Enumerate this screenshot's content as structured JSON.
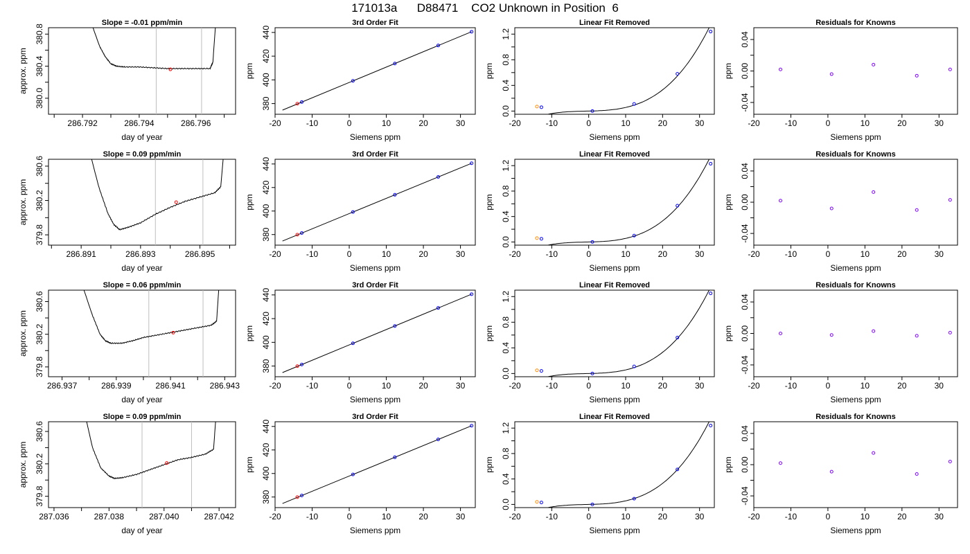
{
  "figure": {
    "title": "171013a      D88471    CO2 Unknown in Position  6"
  },
  "colors": {
    "trace": "#000000",
    "marker_unknown": "#ff0000",
    "marker_known": "#0000ff",
    "marker_ref": "#ff8c00",
    "residual": "#7f00ff",
    "window_lines": "#bebebe"
  },
  "chart_data": [
    {
      "type": "line",
      "row": 1,
      "col": 1,
      "title": "Slope =  -0.01  ppm/min",
      "xlabel": "day of year",
      "ylabel": "approx. ppm",
      "xlim": [
        286.7908,
        286.7974
      ],
      "ylim": [
        379.8,
        380.88
      ],
      "xticks": [
        286.791,
        286.792,
        286.793,
        286.794,
        286.795,
        286.796,
        286.797
      ],
      "xticklabels": [
        "",
        "286.792",
        "",
        "286.794",
        "",
        "286.796",
        ""
      ],
      "yticks": [
        380.0,
        380.2,
        380.4,
        380.6,
        380.8
      ],
      "yticklabels": [
        "380.0",
        "",
        "380.4",
        "",
        "380.8"
      ],
      "vlines": [
        286.7946,
        286.7962
      ],
      "trace": {
        "x": [
          286.7923,
          286.7926,
          286.7928,
          286.793,
          286.7932,
          286.7935,
          286.794,
          286.7945,
          286.795,
          286.7955,
          286.796,
          286.7965,
          286.7966,
          286.7967
        ],
        "y": [
          380.95,
          380.65,
          380.52,
          380.43,
          380.4,
          380.39,
          380.39,
          380.38,
          380.37,
          380.37,
          380.37,
          380.37,
          380.45,
          380.95
        ]
      },
      "marker": {
        "x": 286.7951,
        "y": 380.36
      }
    },
    {
      "type": "scatter",
      "row": 1,
      "col": 2,
      "title": "3rd Order Fit",
      "xlabel": "Siemens ppm",
      "ylabel": "ppm",
      "xlim": [
        -20,
        34
      ],
      "ylim": [
        371,
        444
      ],
      "xticks": [
        -20,
        -10,
        0,
        10,
        20,
        30
      ],
      "xticklabels": [
        "-20",
        "-10",
        "0",
        "10",
        "20",
        "30"
      ],
      "yticks": [
        380,
        400,
        420,
        440
      ],
      "yticklabels": [
        "380",
        "400",
        "420",
        "440"
      ],
      "fit": {
        "x": [
          -18,
          33
        ],
        "y": [
          374.5,
          440.6
        ]
      },
      "points": {
        "x": [
          -12.8,
          1.0,
          12.3,
          24.0,
          33.0
        ],
        "y": [
          381.3,
          399.2,
          413.8,
          429.0,
          440.6
        ]
      },
      "marker": {
        "x": -14.0,
        "y": 379.9
      },
      "knowns_color": "#0000ff",
      "marker_color": "#ff0000"
    },
    {
      "type": "scatter",
      "row": 1,
      "col": 3,
      "title": "Linear Fit Removed",
      "xlabel": "Siemens ppm",
      "ylabel": "ppm",
      "xlim": [
        -20,
        34
      ],
      "ylim": [
        -0.05,
        1.3
      ],
      "xticks": [
        -20,
        -10,
        0,
        10,
        20,
        30
      ],
      "xticklabels": [
        "-20",
        "-10",
        "0",
        "10",
        "20",
        "30"
      ],
      "yticks": [
        0.0,
        0.2,
        0.4,
        0.6,
        0.8,
        1.0,
        1.2
      ],
      "yticklabels": [
        "0.0",
        "",
        "0.4",
        "",
        "0.8",
        "",
        "1.2"
      ],
      "curve": [
        0.0,
        0.00138,
        8.6e-05,
        3.36e-05
      ],
      "points": {
        "x": [
          -12.8,
          1.0,
          12.3,
          24.0,
          33.0
        ],
        "y": [
          0.06,
          0.0,
          0.11,
          0.58,
          1.24
        ]
      },
      "marker": {
        "x": -14.0,
        "y": 0.07
      },
      "knowns_color": "#0000ff",
      "marker_color": "#ff8c00"
    },
    {
      "type": "scatter",
      "row": 1,
      "col": 4,
      "title": "Residuals for Knowns",
      "xlabel": "Siemens ppm",
      "ylabel": "ppm",
      "xlim": [
        -20,
        35
      ],
      "ylim": [
        -0.055,
        0.055
      ],
      "xticks": [
        -20,
        -10,
        0,
        10,
        20,
        30
      ],
      "xticklabels": [
        "-20",
        "-10",
        "0",
        "10",
        "20",
        "30"
      ],
      "yticks": [
        -0.04,
        -0.02,
        0.0,
        0.02,
        0.04
      ],
      "yticklabels": [
        "-0.04",
        "",
        "0.00",
        "",
        "0.04"
      ],
      "points": {
        "x": [
          -12.8,
          1.0,
          12.3,
          24.0,
          33.0
        ],
        "y": [
          0.002,
          -0.004,
          0.008,
          -0.006,
          0.002
        ]
      },
      "knowns_color": "#7f00ff"
    },
    {
      "type": "line",
      "row": 2,
      "col": 1,
      "title": "Slope =  0.09  ppm/min",
      "xlabel": "day of year",
      "ylabel": "approx. ppm",
      "xlim": [
        286.8899,
        286.8962
      ],
      "ylim": [
        379.68,
        380.68
      ],
      "xticks": [
        286.89,
        286.891,
        286.892,
        286.893,
        286.894,
        286.895,
        286.896
      ],
      "xticklabels": [
        "",
        "286.891",
        "",
        "286.893",
        "",
        "286.895",
        ""
      ],
      "yticks": [
        379.8,
        380.0,
        380.2,
        380.4,
        380.6
      ],
      "yticklabels": [
        "379.8",
        "",
        "380.2",
        "",
        "380.6"
      ],
      "vlines": [
        286.8935,
        286.8951
      ],
      "trace": {
        "x": [
          286.8913,
          286.8916,
          286.8919,
          286.8921,
          286.8923,
          286.8926,
          286.893,
          286.8935,
          286.894,
          286.8945,
          286.895,
          286.8955,
          286.8957,
          286.8958
        ],
        "y": [
          380.75,
          380.35,
          380.05,
          379.92,
          379.86,
          379.89,
          379.94,
          380.04,
          380.12,
          380.19,
          380.24,
          380.29,
          380.36,
          380.75
        ]
      },
      "marker": {
        "x": 286.8942,
        "y": 380.18
      }
    },
    {
      "type": "scatter",
      "row": 2,
      "col": 2,
      "title": "3rd Order Fit",
      "xlabel": "Siemens ppm",
      "ylabel": "ppm",
      "xlim": [
        -20,
        34
      ],
      "ylim": [
        371,
        444
      ],
      "xticks": [
        -20,
        -10,
        0,
        10,
        20,
        30
      ],
      "xticklabels": [
        "-20",
        "-10",
        "0",
        "10",
        "20",
        "30"
      ],
      "yticks": [
        380,
        400,
        420,
        440
      ],
      "yticklabels": [
        "380",
        "400",
        "420",
        "440"
      ],
      "fit": {
        "x": [
          -18,
          33
        ],
        "y": [
          374.5,
          440.6
        ]
      },
      "points": {
        "x": [
          -12.8,
          1.0,
          12.3,
          24.0,
          33.0
        ],
        "y": [
          381.3,
          399.2,
          413.8,
          429.0,
          440.6
        ]
      },
      "marker": {
        "x": -14.0,
        "y": 379.9
      },
      "knowns_color": "#0000ff",
      "marker_color": "#ff0000"
    },
    {
      "type": "scatter",
      "row": 2,
      "col": 3,
      "title": "Linear Fit Removed",
      "xlabel": "Siemens ppm",
      "ylabel": "ppm",
      "xlim": [
        -20,
        34
      ],
      "ylim": [
        -0.05,
        1.3
      ],
      "xticks": [
        -20,
        -10,
        0,
        10,
        20,
        30
      ],
      "xticklabels": [
        "-20",
        "-10",
        "0",
        "10",
        "20",
        "30"
      ],
      "yticks": [
        0.0,
        0.2,
        0.4,
        0.6,
        0.8,
        1.0,
        1.2
      ],
      "yticklabels": [
        "0.0",
        "",
        "0.4",
        "",
        "0.8",
        "",
        "1.2"
      ],
      "curve": [
        0.0,
        0.00138,
        8.6e-05,
        3.36e-05
      ],
      "points": {
        "x": [
          -12.8,
          1.0,
          12.3,
          24.0,
          33.0
        ],
        "y": [
          0.05,
          0.0,
          0.1,
          0.57,
          1.23
        ]
      },
      "marker": {
        "x": -14.0,
        "y": 0.06
      },
      "knowns_color": "#0000ff",
      "marker_color": "#ff8c00"
    },
    {
      "type": "scatter",
      "row": 2,
      "col": 4,
      "title": "Residuals for Knowns",
      "xlabel": "Siemens ppm",
      "ylabel": "ppm",
      "xlim": [
        -20,
        35
      ],
      "ylim": [
        -0.055,
        0.055
      ],
      "xticks": [
        -20,
        -10,
        0,
        10,
        20,
        30
      ],
      "xticklabels": [
        "-20",
        "-10",
        "0",
        "10",
        "20",
        "30"
      ],
      "yticks": [
        -0.04,
        -0.02,
        0.0,
        0.02,
        0.04
      ],
      "yticklabels": [
        "-0.04",
        "",
        "0.00",
        "",
        "0.04"
      ],
      "points": {
        "x": [
          -12.8,
          1.0,
          12.3,
          24.0,
          33.0
        ],
        "y": [
          0.002,
          -0.008,
          0.013,
          -0.01,
          0.003
        ]
      },
      "knowns_color": "#7f00ff"
    },
    {
      "type": "line",
      "row": 3,
      "col": 1,
      "title": "Slope =  0.06  ppm/min",
      "xlabel": "day of year",
      "ylabel": "approx. ppm",
      "xlim": [
        286.9365,
        286.9434
      ],
      "ylim": [
        379.68,
        380.74
      ],
      "xticks": [
        286.937,
        286.938,
        286.939,
        286.94,
        286.941,
        286.942,
        286.943
      ],
      "xticklabels": [
        "286.937",
        "",
        "286.939",
        "",
        "286.941",
        "",
        "286.943"
      ],
      "yticks": [
        379.8,
        380.0,
        380.2,
        380.4,
        380.6
      ],
      "yticklabels": [
        "379.8",
        "",
        "380.2",
        "",
        "380.6"
      ],
      "vlines": [
        286.9402,
        286.9422
      ],
      "trace": {
        "x": [
          286.9377,
          286.9381,
          286.9384,
          286.9386,
          286.9388,
          286.9392,
          286.9396,
          286.94,
          286.9405,
          286.941,
          286.9415,
          286.942,
          286.9425,
          286.9427,
          286.9428
        ],
        "y": [
          380.85,
          380.45,
          380.2,
          380.12,
          380.09,
          380.09,
          380.12,
          380.16,
          380.19,
          380.22,
          380.25,
          380.28,
          380.31,
          380.36,
          380.85
        ]
      },
      "marker": {
        "x": 286.9411,
        "y": 380.22
      }
    },
    {
      "type": "scatter",
      "row": 3,
      "col": 2,
      "title": "3rd Order Fit",
      "xlabel": "Siemens ppm",
      "ylabel": "ppm",
      "xlim": [
        -20,
        34
      ],
      "ylim": [
        371,
        444
      ],
      "xticks": [
        -20,
        -10,
        0,
        10,
        20,
        30
      ],
      "xticklabels": [
        "-20",
        "-10",
        "0",
        "10",
        "20",
        "30"
      ],
      "yticks": [
        380,
        400,
        420,
        440
      ],
      "yticklabels": [
        "380",
        "400",
        "420",
        "440"
      ],
      "fit": {
        "x": [
          -18,
          33
        ],
        "y": [
          374.5,
          440.6
        ]
      },
      "points": {
        "x": [
          -12.8,
          1.0,
          12.3,
          24.0,
          33.0
        ],
        "y": [
          381.3,
          399.2,
          413.8,
          429.0,
          440.6
        ]
      },
      "marker": {
        "x": -14.0,
        "y": 379.9
      },
      "knowns_color": "#0000ff",
      "marker_color": "#ff0000"
    },
    {
      "type": "scatter",
      "row": 3,
      "col": 3,
      "title": "Linear Fit Removed",
      "xlabel": "Siemens ppm",
      "ylabel": "ppm",
      "xlim": [
        -20,
        34
      ],
      "ylim": [
        -0.05,
        1.3
      ],
      "xticks": [
        -20,
        -10,
        0,
        10,
        20,
        30
      ],
      "xticklabels": [
        "-20",
        "-10",
        "0",
        "10",
        "20",
        "30"
      ],
      "yticks": [
        0.0,
        0.2,
        0.4,
        0.6,
        0.8,
        1.0,
        1.2
      ],
      "yticklabels": [
        "0.0",
        "",
        "0.4",
        "",
        "0.8",
        "",
        "1.2"
      ],
      "curve": [
        0.0,
        0.00138,
        8.6e-05,
        3.36e-05
      ],
      "points": {
        "x": [
          -12.8,
          1.0,
          12.3,
          24.0,
          33.0
        ],
        "y": [
          0.04,
          0.0,
          0.11,
          0.56,
          1.25
        ]
      },
      "marker": {
        "x": -14.0,
        "y": 0.05
      },
      "knowns_color": "#0000ff",
      "marker_color": "#ff8c00"
    },
    {
      "type": "scatter",
      "row": 3,
      "col": 4,
      "title": "Residuals for Knowns",
      "xlabel": "Siemens ppm",
      "ylabel": "ppm",
      "xlim": [
        -20,
        35
      ],
      "ylim": [
        -0.055,
        0.055
      ],
      "xticks": [
        -20,
        -10,
        0,
        10,
        20,
        30
      ],
      "xticklabels": [
        "-20",
        "-10",
        "0",
        "10",
        "20",
        "30"
      ],
      "yticks": [
        -0.04,
        -0.02,
        0.0,
        0.02,
        0.04
      ],
      "yticklabels": [
        "-0.04",
        "",
        "0.00",
        "",
        "0.04"
      ],
      "points": {
        "x": [
          -12.8,
          1.0,
          12.3,
          24.0,
          33.0
        ],
        "y": [
          0.0,
          -0.002,
          0.003,
          -0.003,
          0.001
        ]
      },
      "knowns_color": "#7f00ff"
    },
    {
      "type": "line",
      "row": 4,
      "col": 1,
      "title": "Slope =  0.09  ppm/min",
      "xlabel": "day of year",
      "ylabel": "approx. ppm",
      "xlim": [
        287.0358,
        287.0426
      ],
      "ylim": [
        379.66,
        380.72
      ],
      "xticks": [
        287.036,
        287.037,
        287.038,
        287.039,
        287.04,
        287.041,
        287.042
      ],
      "xticklabels": [
        "287.036",
        "",
        "287.038",
        "",
        "287.040",
        "",
        "287.042"
      ],
      "yticks": [
        379.8,
        380.0,
        380.2,
        380.4,
        380.6
      ],
      "yticklabels": [
        "379.8",
        "",
        "380.2",
        "",
        "380.6"
      ],
      "vlines": [
        287.0392,
        287.041
      ],
      "trace": {
        "x": [
          287.0371,
          287.0374,
          287.0377,
          287.038,
          287.0382,
          287.0385,
          287.039,
          287.0395,
          287.04,
          287.0405,
          287.041,
          287.0415,
          287.0418,
          287.0419
        ],
        "y": [
          380.85,
          380.4,
          380.15,
          380.05,
          380.02,
          380.03,
          380.07,
          380.13,
          380.19,
          380.25,
          380.28,
          380.32,
          380.38,
          380.85
        ]
      },
      "marker": {
        "x": 287.0401,
        "y": 380.21
      }
    },
    {
      "type": "scatter",
      "row": 4,
      "col": 2,
      "title": "3rd Order Fit",
      "xlabel": "Siemens ppm",
      "ylabel": "ppm",
      "xlim": [
        -20,
        34
      ],
      "ylim": [
        371,
        444
      ],
      "xticks": [
        -20,
        -10,
        0,
        10,
        20,
        30
      ],
      "xticklabels": [
        "-20",
        "-10",
        "0",
        "10",
        "20",
        "30"
      ],
      "yticks": [
        380,
        400,
        420,
        440
      ],
      "yticklabels": [
        "380",
        "400",
        "420",
        "440"
      ],
      "fit": {
        "x": [
          -18,
          33
        ],
        "y": [
          374.5,
          440.6
        ]
      },
      "points": {
        "x": [
          -12.8,
          1.0,
          12.3,
          24.0,
          33.0
        ],
        "y": [
          381.3,
          399.2,
          413.8,
          429.0,
          440.6
        ]
      },
      "marker": {
        "x": -14.0,
        "y": 379.9
      },
      "knowns_color": "#0000ff",
      "marker_color": "#ff0000"
    },
    {
      "type": "scatter",
      "row": 4,
      "col": 3,
      "title": "Linear Fit Removed",
      "xlabel": "Siemens ppm",
      "ylabel": "ppm",
      "xlim": [
        -20,
        34
      ],
      "ylim": [
        -0.05,
        1.3
      ],
      "xticks": [
        -20,
        -10,
        0,
        10,
        20,
        30
      ],
      "xticklabels": [
        "-20",
        "-10",
        "0",
        "10",
        "20",
        "30"
      ],
      "yticks": [
        0.0,
        0.2,
        0.4,
        0.6,
        0.8,
        1.0,
        1.2
      ],
      "yticklabels": [
        "0.0",
        "",
        "0.4",
        "",
        "0.8",
        "",
        "1.2"
      ],
      "curve": [
        0.0,
        0.00138,
        8.6e-05,
        3.36e-05
      ],
      "points": {
        "x": [
          -12.8,
          1.0,
          12.3,
          24.0,
          33.0
        ],
        "y": [
          0.03,
          0.0,
          0.09,
          0.55,
          1.24
        ]
      },
      "marker": {
        "x": -14.0,
        "y": 0.04
      },
      "knowns_color": "#0000ff",
      "marker_color": "#ff8c00"
    },
    {
      "type": "scatter",
      "row": 4,
      "col": 4,
      "title": "Residuals for Knowns",
      "xlabel": "Siemens ppm",
      "ylabel": "ppm",
      "xlim": [
        -20,
        35
      ],
      "ylim": [
        -0.055,
        0.055
      ],
      "xticks": [
        -20,
        -10,
        0,
        10,
        20,
        30
      ],
      "xticklabels": [
        "-20",
        "-10",
        "0",
        "10",
        "20",
        "30"
      ],
      "yticks": [
        -0.04,
        -0.02,
        0.0,
        0.02,
        0.04
      ],
      "yticklabels": [
        "-0.04",
        "",
        "0.00",
        "",
        "0.04"
      ],
      "points": {
        "x": [
          -12.8,
          1.0,
          12.3,
          24.0,
          33.0
        ],
        "y": [
          0.002,
          -0.009,
          0.015,
          -0.012,
          0.004
        ]
      },
      "knowns_color": "#7f00ff"
    }
  ]
}
